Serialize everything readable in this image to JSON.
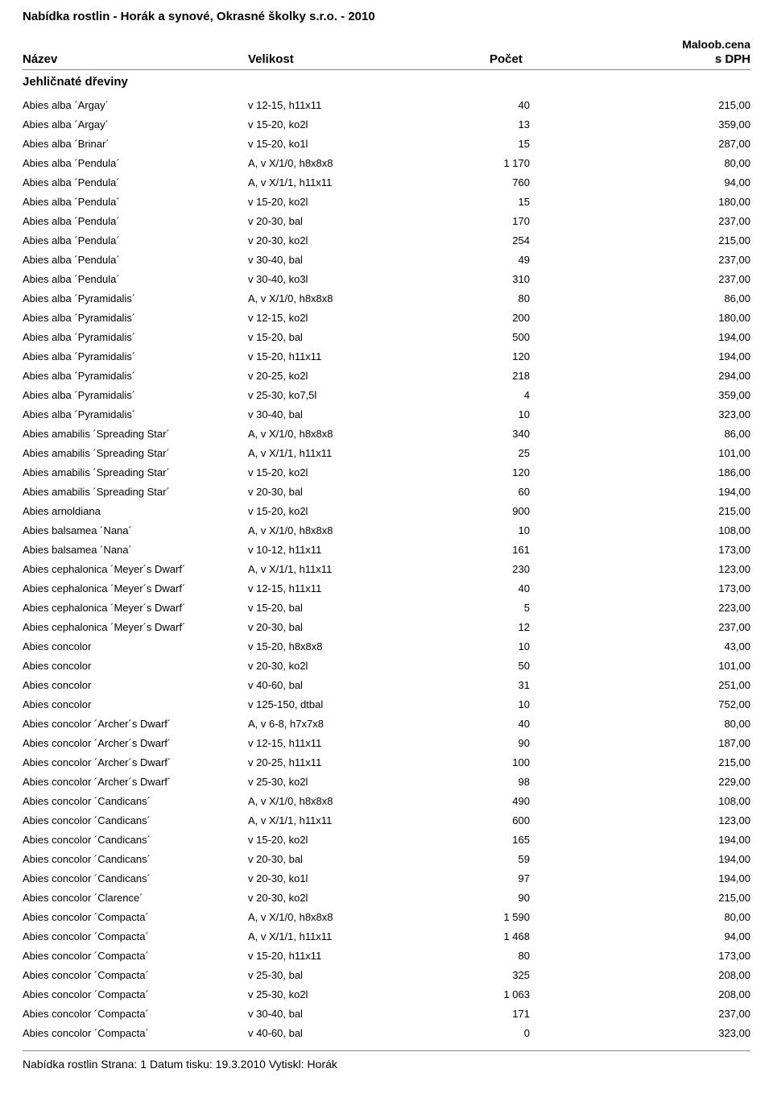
{
  "document_title": "Nabídka rostlin - Horák a synové, Okrasné školky s.r.o. - 2010",
  "top_right_label": "Maloob.cena",
  "columns": {
    "name": "Název",
    "size": "Velikost",
    "count": "Počet",
    "price": "s DPH"
  },
  "section_heading": "Jehličnaté dřeviny",
  "rows": [
    {
      "name": "Abies alba ´Argay´",
      "size": "v 12-15, h11x11",
      "count": "40",
      "price": "215,00"
    },
    {
      "name": "Abies alba ´Argay´",
      "size": "v 15-20, ko2l",
      "count": "13",
      "price": "359,00"
    },
    {
      "name": "Abies alba ´Brinar´",
      "size": "v 15-20, ko1l",
      "count": "15",
      "price": "287,00"
    },
    {
      "name": "Abies alba ´Pendula´",
      "size": "A, v X/1/0, h8x8x8",
      "count": "1 170",
      "price": "80,00"
    },
    {
      "name": "Abies alba ´Pendula´",
      "size": "A, v X/1/1, h11x11",
      "count": "760",
      "price": "94,00"
    },
    {
      "name": "Abies alba ´Pendula´",
      "size": "v 15-20, ko2l",
      "count": "15",
      "price": "180,00"
    },
    {
      "name": "Abies alba ´Pendula´",
      "size": "v 20-30, bal",
      "count": "170",
      "price": "237,00"
    },
    {
      "name": "Abies alba ´Pendula´",
      "size": "v 20-30, ko2l",
      "count": "254",
      "price": "215,00"
    },
    {
      "name": "Abies alba ´Pendula´",
      "size": "v 30-40, bal",
      "count": "49",
      "price": "237,00"
    },
    {
      "name": "Abies alba ´Pendula´",
      "size": "v 30-40, ko3l",
      "count": "310",
      "price": "237,00"
    },
    {
      "name": "Abies alba ´Pyramidalis´",
      "size": "A, v X/1/0, h8x8x8",
      "count": "80",
      "price": "86,00"
    },
    {
      "name": "Abies alba ´Pyramidalis´",
      "size": "v 12-15, ko2l",
      "count": "200",
      "price": "180,00"
    },
    {
      "name": "Abies alba ´Pyramidalis´",
      "size": "v 15-20, bal",
      "count": "500",
      "price": "194,00"
    },
    {
      "name": "Abies alba ´Pyramidalis´",
      "size": "v 15-20, h11x11",
      "count": "120",
      "price": "194,00"
    },
    {
      "name": "Abies alba ´Pyramidalis´",
      "size": "v 20-25, ko2l",
      "count": "218",
      "price": "294,00"
    },
    {
      "name": "Abies alba ´Pyramidalis´",
      "size": "v 25-30, ko7,5l",
      "count": "4",
      "price": "359,00"
    },
    {
      "name": "Abies alba ´Pyramidalis´",
      "size": "v 30-40, bal",
      "count": "10",
      "price": "323,00"
    },
    {
      "name": "Abies amabilis ´Spreading Star´",
      "size": "A, v X/1/0, h8x8x8",
      "count": "340",
      "price": "86,00"
    },
    {
      "name": "Abies amabilis ´Spreading Star´",
      "size": "A, v X/1/1, h11x11",
      "count": "25",
      "price": "101,00"
    },
    {
      "name": "Abies amabilis ´Spreading Star´",
      "size": "v 15-20, ko2l",
      "count": "120",
      "price": "186,00"
    },
    {
      "name": "Abies amabilis ´Spreading Star´",
      "size": "v 20-30, bal",
      "count": "60",
      "price": "194,00"
    },
    {
      "name": "Abies arnoldiana",
      "size": "v 15-20, ko2l",
      "count": "900",
      "price": "215,00"
    },
    {
      "name": "Abies balsamea ´Nana´",
      "size": "A, v X/1/0, h8x8x8",
      "count": "10",
      "price": "108,00"
    },
    {
      "name": "Abies balsamea ´Nana´",
      "size": "v 10-12, h11x11",
      "count": "161",
      "price": "173,00"
    },
    {
      "name": "Abies cephalonica ´Meyer´s Dwarf´",
      "size": "A, v X/1/1, h11x11",
      "count": "230",
      "price": "123,00"
    },
    {
      "name": "Abies cephalonica ´Meyer´s Dwarf´",
      "size": "v 12-15, h11x11",
      "count": "40",
      "price": "173,00"
    },
    {
      "name": "Abies cephalonica ´Meyer´s Dwarf´",
      "size": "v 15-20, bal",
      "count": "5",
      "price": "223,00"
    },
    {
      "name": "Abies cephalonica ´Meyer´s Dwarf´",
      "size": "v 20-30, bal",
      "count": "12",
      "price": "237,00"
    },
    {
      "name": "Abies concolor",
      "size": "v 15-20, h8x8x8",
      "count": "10",
      "price": "43,00"
    },
    {
      "name": "Abies concolor",
      "size": "v 20-30, ko2l",
      "count": "50",
      "price": "101,00"
    },
    {
      "name": "Abies concolor",
      "size": "v 40-60, bal",
      "count": "31",
      "price": "251,00"
    },
    {
      "name": "Abies concolor",
      "size": "v 125-150, dtbal",
      "count": "10",
      "price": "752,00"
    },
    {
      "name": "Abies concolor ´Archer´s Dwarf´",
      "size": "A, v 6-8, h7x7x8",
      "count": "40",
      "price": "80,00"
    },
    {
      "name": "Abies concolor ´Archer´s Dwarf´",
      "size": "v 12-15, h11x11",
      "count": "90",
      "price": "187,00"
    },
    {
      "name": "Abies concolor ´Archer´s Dwarf´",
      "size": "v 20-25, h11x11",
      "count": "100",
      "price": "215,00"
    },
    {
      "name": "Abies concolor ´Archer´s Dwarf´",
      "size": "v 25-30, ko2l",
      "count": "98",
      "price": "229,00"
    },
    {
      "name": "Abies concolor ´Candicans´",
      "size": "A, v X/1/0, h8x8x8",
      "count": "490",
      "price": "108,00"
    },
    {
      "name": "Abies concolor ´Candicans´",
      "size": "A, v X/1/1, h11x11",
      "count": "600",
      "price": "123,00"
    },
    {
      "name": "Abies concolor ´Candicans´",
      "size": "v 15-20, ko2l",
      "count": "165",
      "price": "194,00"
    },
    {
      "name": "Abies concolor ´Candicans´",
      "size": "v 20-30, bal",
      "count": "59",
      "price": "194,00"
    },
    {
      "name": "Abies concolor ´Candicans´",
      "size": "v 20-30, ko1l",
      "count": "97",
      "price": "194,00"
    },
    {
      "name": "Abies concolor ´Clarence´",
      "size": "v 20-30, ko2l",
      "count": "90",
      "price": "215,00"
    },
    {
      "name": "Abies concolor ´Compacta´",
      "size": "A, v X/1/0, h8x8x8",
      "count": "1 590",
      "price": "80,00"
    },
    {
      "name": "Abies concolor ´Compacta´",
      "size": "A, v X/1/1, h11x11",
      "count": "1 468",
      "price": "94,00"
    },
    {
      "name": "Abies concolor ´Compacta´",
      "size": "v 15-20, h11x11",
      "count": "80",
      "price": "173,00"
    },
    {
      "name": "Abies concolor ´Compacta´",
      "size": "v 25-30, bal",
      "count": "325",
      "price": "208,00"
    },
    {
      "name": "Abies concolor ´Compacta´",
      "size": "v 25-30, ko2l",
      "count": "1 063",
      "price": "208,00"
    },
    {
      "name": "Abies concolor ´Compacta´",
      "size": "v 30-40, bal",
      "count": "171",
      "price": "237,00"
    },
    {
      "name": "Abies concolor ´Compacta´",
      "size": "v 40-60, bal",
      "count": "0",
      "price": "323,00"
    }
  ],
  "footer": "Nabídka rostlin Strana: 1 Datum tisku: 19.3.2010 Vytiskl: Horák"
}
